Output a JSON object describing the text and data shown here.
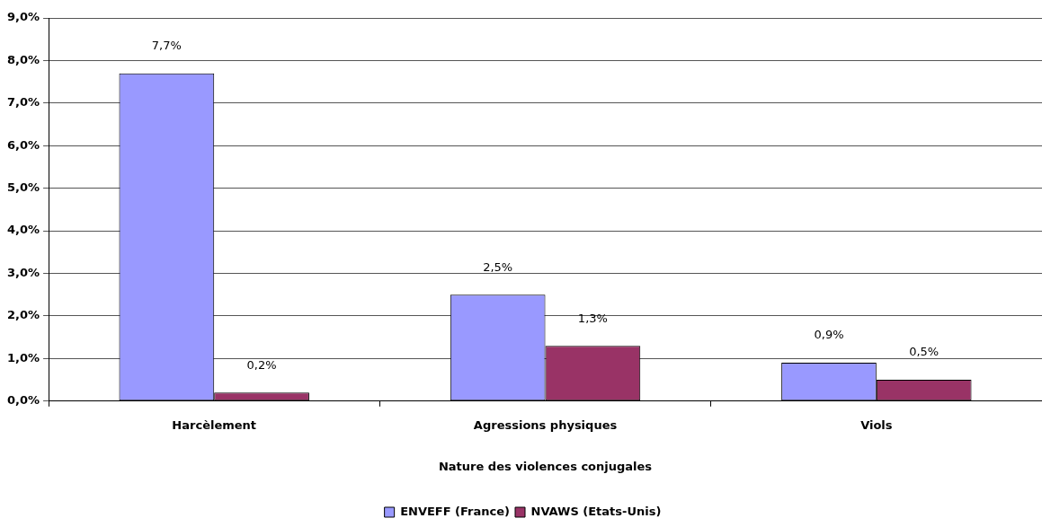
{
  "chart_data": {
    "type": "bar",
    "xlabel": "Nature des violences conjugales",
    "categories": [
      "Harcèlement",
      "Agressions physiques",
      "Viols"
    ],
    "series": [
      {
        "name": "ENVEFF (France)",
        "color": "#9999ff",
        "values": [
          7.7,
          2.5,
          0.9
        ],
        "value_labels": [
          "7,7%",
          "2,5%",
          "0,9%"
        ]
      },
      {
        "name": "NVAWS (Etats-Unis)",
        "color": "#993366",
        "values": [
          0.2,
          1.3,
          0.5
        ],
        "value_labels": [
          "0,2%",
          "1,3%",
          "0,5%"
        ]
      }
    ],
    "ylim": [
      0,
      9
    ],
    "yticks": [
      {
        "value": 0,
        "label": "0,0%"
      },
      {
        "value": 1,
        "label": "1,0%"
      },
      {
        "value": 2,
        "label": "2,0%"
      },
      {
        "value": 3,
        "label": "3,0%"
      },
      {
        "value": 4,
        "label": "4,0%"
      },
      {
        "value": 5,
        "label": "5,0%"
      },
      {
        "value": 6,
        "label": "6,0%"
      },
      {
        "value": 7,
        "label": "7,0%"
      },
      {
        "value": 8,
        "label": "8,0%"
      },
      {
        "value": 9,
        "label": "9,0%"
      }
    ],
    "grid": "y",
    "legend": "bottom"
  }
}
